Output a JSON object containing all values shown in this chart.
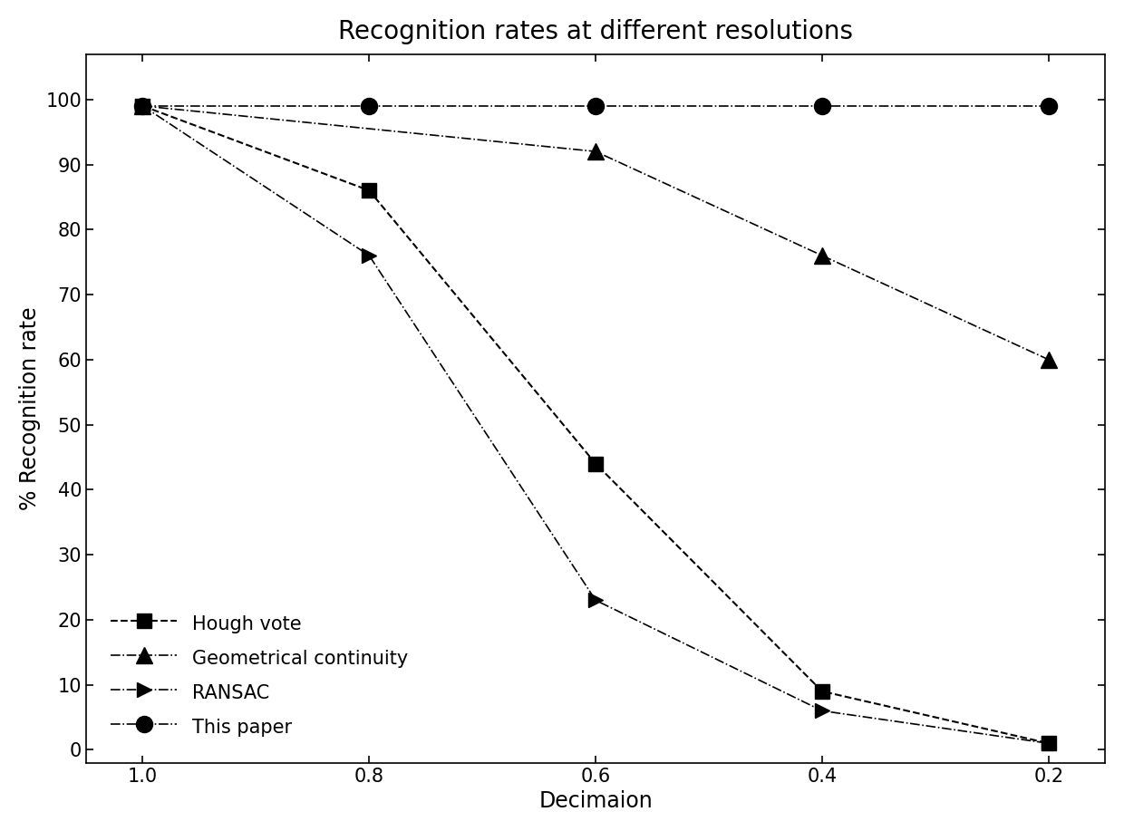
{
  "title": "Recognition rates at different resolutions",
  "xlabel": "Decimaion",
  "ylabel": "% Recognition rate",
  "xlim": [
    1.05,
    0.15
  ],
  "ylim": [
    -2,
    107
  ],
  "xticks": [
    1.0,
    0.8,
    0.6,
    0.4,
    0.2
  ],
  "yticks": [
    0,
    10,
    20,
    30,
    40,
    50,
    60,
    70,
    80,
    90,
    100
  ],
  "series": {
    "hough_vote": {
      "x": [
        1.0,
        0.8,
        0.6,
        0.4,
        0.2
      ],
      "y": [
        99,
        86,
        44,
        9,
        1
      ],
      "label": "Hough vote",
      "linestyle": "--",
      "marker": "s",
      "color": "#000000",
      "markersize": 11,
      "linewidth": 1.5
    },
    "geometrical_continuity": {
      "x": [
        1.0,
        0.6,
        0.4,
        0.2
      ],
      "y": [
        99,
        92,
        76,
        60
      ],
      "label": "Geometrical continuity",
      "linestyle": "-.",
      "marker": "^",
      "color": "#000000",
      "markersize": 13,
      "linewidth": 1.2
    },
    "ransac": {
      "x": [
        1.0,
        0.8,
        0.6,
        0.4,
        0.2
      ],
      "y": [
        99,
        76,
        23,
        6,
        1
      ],
      "label": "RANSAC",
      "linestyle": "-.",
      "marker": ">",
      "color": "#000000",
      "markersize": 11,
      "linewidth": 1.2
    },
    "this_paper": {
      "x": [
        1.0,
        0.8,
        0.6,
        0.4,
        0.2
      ],
      "y": [
        99,
        99,
        99,
        99,
        99
      ],
      "label": "This paper",
      "linestyle": "-.",
      "marker": "o",
      "color": "#000000",
      "markersize": 13,
      "linewidth": 1.2
    }
  },
  "background_color": "#ffffff",
  "title_fontsize": 20,
  "axis_label_fontsize": 17,
  "tick_fontsize": 15,
  "legend_fontsize": 15
}
